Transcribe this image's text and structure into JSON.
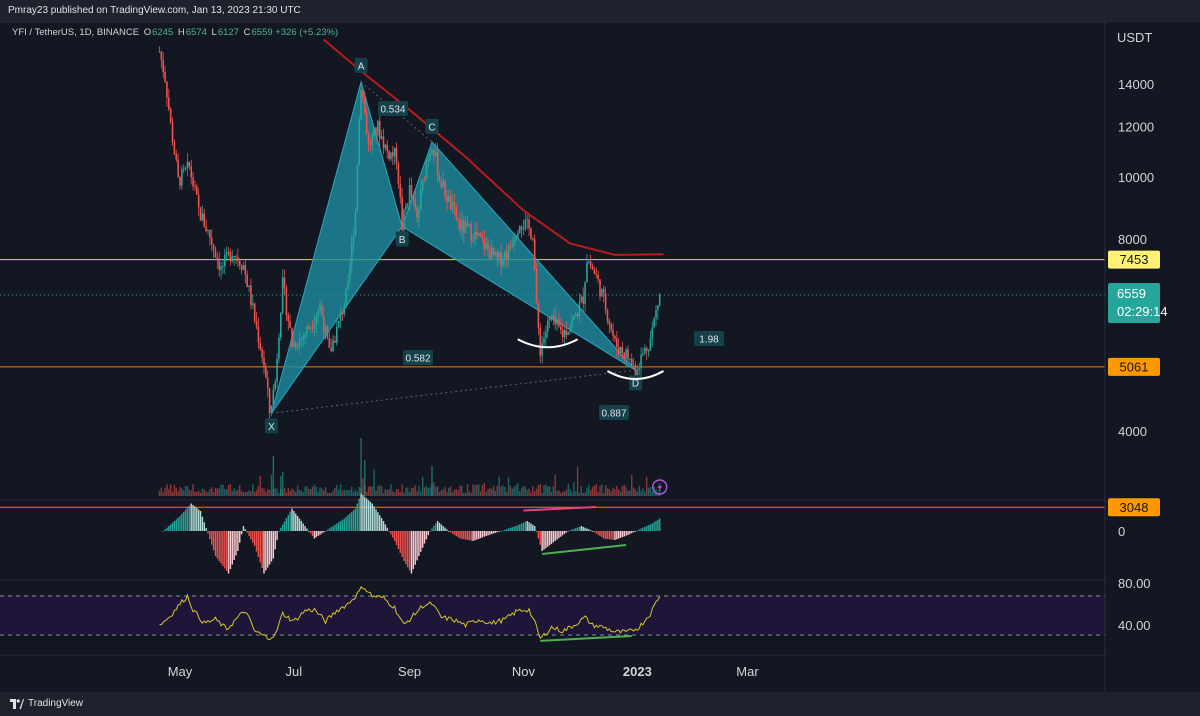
{
  "header": {
    "publish_text": "Pmray23 published on TradingView.com, Jan 13, 2023 21:30 UTC"
  },
  "legend": {
    "symbol": "YFI / TetherUS, 1D, BINANCE",
    "open_label": "O",
    "open": "6245",
    "high_label": "H",
    "high": "6574",
    "low_label": "L",
    "low": "6127",
    "close_label": "C",
    "close": "6559",
    "change": "+326 (+5.23%)"
  },
  "footer": {
    "brand": "TradingView"
  },
  "colors": {
    "background": "#131722",
    "up": "#26a69a",
    "down": "#ef5350",
    "harmonic_fill": "#1e8fa3",
    "ma": "#b71c1c",
    "yellow_line": "#e0d84d",
    "orange_line": "#f57c00",
    "rsi_line": "#d4c62a",
    "divergence_green": "#4caf50",
    "divergence_pink": "#ec407a"
  },
  "chart_data": {
    "type": "candlestick",
    "currency": "USDT",
    "y_ticks": [
      "14000",
      "12000",
      "10000",
      "8000",
      "4000"
    ],
    "ylim": [
      2700,
      15800
    ],
    "x_ticks": [
      "May",
      "Jul",
      "Sep",
      "Nov",
      "2023",
      "Mar"
    ],
    "price_path": [
      [
        "2022-04-20",
        15800
      ],
      [
        "2022-04-23",
        14400
      ],
      [
        "2022-04-26",
        12100
      ],
      [
        "2022-04-30",
        9900
      ],
      [
        "2022-05-06",
        10400
      ],
      [
        "2022-05-11",
        8900
      ],
      [
        "2022-05-17",
        8100
      ],
      [
        "2022-05-23",
        7200
      ],
      [
        "2022-05-29",
        7700
      ],
      [
        "2022-06-04",
        7300
      ],
      [
        "2022-06-10",
        6000
      ],
      [
        "2022-06-15",
        5100
      ],
      [
        "2022-06-18",
        4300
      ],
      [
        "2022-06-21",
        4800
      ],
      [
        "2022-06-25",
        6800
      ],
      [
        "2022-06-30",
        5500
      ],
      [
        "2022-07-05",
        5600
      ],
      [
        "2022-07-10",
        5900
      ],
      [
        "2022-07-15",
        6300
      ],
      [
        "2022-07-20",
        5300
      ],
      [
        "2022-07-25",
        5900
      ],
      [
        "2022-07-30",
        6700
      ],
      [
        "2022-08-03",
        8900
      ],
      [
        "2022-08-06",
        14100
      ],
      [
        "2022-08-10",
        11200
      ],
      [
        "2022-08-15",
        12000
      ],
      [
        "2022-08-20",
        11000
      ],
      [
        "2022-08-25",
        10800
      ],
      [
        "2022-08-28",
        8400
      ],
      [
        "2022-09-01",
        9600
      ],
      [
        "2022-09-05",
        8600
      ],
      [
        "2022-09-10",
        10600
      ],
      [
        "2022-09-13",
        11400
      ],
      [
        "2022-09-17",
        10000
      ],
      [
        "2022-09-22",
        9200
      ],
      [
        "2022-09-28",
        8400
      ],
      [
        "2022-10-05",
        8200
      ],
      [
        "2022-10-12",
        7800
      ],
      [
        "2022-10-18",
        7400
      ],
      [
        "2022-10-24",
        7700
      ],
      [
        "2022-10-30",
        8600
      ],
      [
        "2022-11-06",
        8200
      ],
      [
        "2022-11-08",
        6200
      ],
      [
        "2022-11-10",
        5400
      ],
      [
        "2022-11-15",
        6000
      ],
      [
        "2022-11-22",
        5700
      ],
      [
        "2022-11-28",
        6000
      ],
      [
        "2022-12-03",
        6500
      ],
      [
        "2022-12-05",
        7500
      ],
      [
        "2022-12-10",
        7000
      ],
      [
        "2022-12-15",
        6300
      ],
      [
        "2022-12-20",
        5500
      ],
      [
        "2022-12-26",
        5300
      ],
      [
        "2022-12-31",
        5000
      ],
      [
        "2023-01-04",
        5300
      ],
      [
        "2023-01-08",
        5600
      ],
      [
        "2023-01-13",
        6559
      ]
    ],
    "moving_average": [
      [
        "2022-07-17",
        16500
      ],
      [
        "2022-08-05",
        14800
      ],
      [
        "2022-09-01",
        12800
      ],
      [
        "2022-10-01",
        10800
      ],
      [
        "2022-11-01",
        8900
      ],
      [
        "2022-11-26",
        7900
      ],
      [
        "2022-12-20",
        7580
      ],
      [
        "2023-01-15",
        7600
      ]
    ],
    "harmonic_pattern": {
      "points": [
        {
          "label": "X",
          "date": "2022-06-19",
          "price": 4280
        },
        {
          "label": "A",
          "date": "2022-08-06",
          "price": 14150
        },
        {
          "label": "B",
          "date": "2022-08-28",
          "price": 8400
        },
        {
          "label": "C",
          "date": "2022-09-13",
          "price": 11400
        },
        {
          "label": "D",
          "date": "2022-12-31",
          "price": 5000
        }
      ],
      "ratios": [
        "0.534",
        "0.582",
        "1.98",
        "0.887"
      ]
    },
    "levels": [
      {
        "label": "7453",
        "price": 7453,
        "color": "#e0d84d"
      },
      {
        "label": "5061",
        "price": 5061,
        "color": "#f57c00"
      },
      {
        "label": "3048",
        "price": 3048,
        "color": "#f57c00"
      }
    ],
    "last_price": {
      "label": "6559",
      "price": 6559,
      "countdown": "02:29:14"
    },
    "macd": {
      "zero_label": "0",
      "series": [
        [
          "2022-04-22",
          0.0
        ],
        [
          "2022-05-01",
          0.3
        ],
        [
          "2022-05-07",
          0.55
        ],
        [
          "2022-05-12",
          0.4
        ],
        [
          "2022-05-20",
          -0.5
        ],
        [
          "2022-05-27",
          -0.85
        ],
        [
          "2022-06-01",
          -0.4
        ],
        [
          "2022-06-04",
          0.1
        ],
        [
          "2022-06-10",
          -0.3
        ],
        [
          "2022-06-15",
          -0.85
        ],
        [
          "2022-06-20",
          -0.55
        ],
        [
          "2022-06-23",
          0.0
        ],
        [
          "2022-06-30",
          0.45
        ],
        [
          "2022-07-05",
          0.2
        ],
        [
          "2022-07-12",
          -0.15
        ],
        [
          "2022-07-20",
          0.05
        ],
        [
          "2022-07-28",
          0.25
        ],
        [
          "2022-08-03",
          0.45
        ],
        [
          "2022-08-06",
          0.75
        ],
        [
          "2022-08-12",
          0.55
        ],
        [
          "2022-08-18",
          0.2
        ],
        [
          "2022-08-24",
          -0.2
        ],
        [
          "2022-08-29",
          -0.6
        ],
        [
          "2022-09-02",
          -0.85
        ],
        [
          "2022-09-06",
          -0.5
        ],
        [
          "2022-09-12",
          0.0
        ],
        [
          "2022-09-16",
          0.2
        ],
        [
          "2022-09-22",
          0.0
        ],
        [
          "2022-09-28",
          -0.15
        ],
        [
          "2022-10-05",
          -0.2
        ],
        [
          "2022-10-12",
          -0.1
        ],
        [
          "2022-10-20",
          0.0
        ],
        [
          "2022-10-28",
          0.1
        ],
        [
          "2022-11-03",
          0.2
        ],
        [
          "2022-11-07",
          0.1
        ],
        [
          "2022-11-11",
          -0.4
        ],
        [
          "2022-11-18",
          -0.2
        ],
        [
          "2022-11-25",
          0.0
        ],
        [
          "2022-12-02",
          0.1
        ],
        [
          "2022-12-08",
          0.0
        ],
        [
          "2022-12-14",
          -0.15
        ],
        [
          "2022-12-20",
          -0.18
        ],
        [
          "2022-12-27",
          -0.08
        ],
        [
          "2023-01-03",
          0.05
        ],
        [
          "2023-01-09",
          0.15
        ],
        [
          "2023-01-13",
          0.25
        ]
      ],
      "divergence_top": [
        [
          "2022-11-01",
          0.25
        ],
        [
          "2022-12-10",
          0.32
        ]
      ],
      "divergence_bottom": [
        [
          "2022-11-11",
          -0.42
        ],
        [
          "2022-12-26",
          -0.24
        ]
      ]
    },
    "rsi": {
      "y_ticks": [
        "80.00",
        "40.00"
      ],
      "upper": 70,
      "lower": 30,
      "series": [
        [
          "2022-04-20",
          40
        ],
        [
          "2022-04-26",
          50
        ],
        [
          "2022-05-01",
          62
        ],
        [
          "2022-05-05",
          70
        ],
        [
          "2022-05-08",
          56
        ],
        [
          "2022-05-14",
          42
        ],
        [
          "2022-05-20",
          46
        ],
        [
          "2022-05-26",
          36
        ],
        [
          "2022-06-01",
          48
        ],
        [
          "2022-06-05",
          55
        ],
        [
          "2022-06-10",
          34
        ],
        [
          "2022-06-17",
          27
        ],
        [
          "2022-06-21",
          30
        ],
        [
          "2022-06-25",
          52
        ],
        [
          "2022-07-01",
          44
        ],
        [
          "2022-07-07",
          55
        ],
        [
          "2022-07-12",
          56
        ],
        [
          "2022-07-18",
          44
        ],
        [
          "2022-07-24",
          55
        ],
        [
          "2022-07-30",
          62
        ],
        [
          "2022-08-04",
          72
        ],
        [
          "2022-08-07",
          80
        ],
        [
          "2022-08-12",
          70
        ],
        [
          "2022-08-18",
          68
        ],
        [
          "2022-08-24",
          58
        ],
        [
          "2022-08-29",
          40
        ],
        [
          "2022-09-03",
          50
        ],
        [
          "2022-09-08",
          60
        ],
        [
          "2022-09-13",
          62
        ],
        [
          "2022-09-18",
          48
        ],
        [
          "2022-09-24",
          46
        ],
        [
          "2022-10-01",
          40
        ],
        [
          "2022-10-08",
          46
        ],
        [
          "2022-10-15",
          42
        ],
        [
          "2022-10-22",
          46
        ],
        [
          "2022-10-29",
          55
        ],
        [
          "2022-11-04",
          56
        ],
        [
          "2022-11-08",
          38
        ],
        [
          "2022-11-10",
          26
        ],
        [
          "2022-11-16",
          38
        ],
        [
          "2022-11-22",
          34
        ],
        [
          "2022-11-28",
          40
        ],
        [
          "2022-12-04",
          48
        ],
        [
          "2022-12-08",
          40
        ],
        [
          "2022-12-14",
          38
        ],
        [
          "2022-12-20",
          33
        ],
        [
          "2022-12-27",
          33
        ],
        [
          "2023-01-02",
          38
        ],
        [
          "2023-01-08",
          52
        ],
        [
          "2023-01-13",
          71
        ]
      ],
      "divergence": [
        [
          "2022-11-10",
          26
        ],
        [
          "2022-12-29",
          31
        ]
      ]
    }
  }
}
